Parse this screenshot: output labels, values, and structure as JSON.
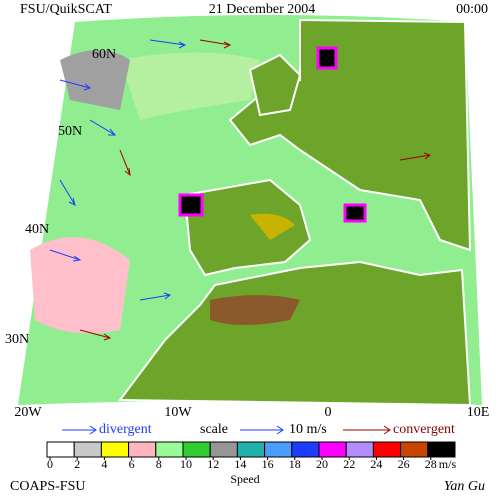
{
  "header": {
    "left": "FSU/QuikSCAT",
    "center": "21 December 2004",
    "right": "00:00"
  },
  "map": {
    "lat_labels": [
      "60N",
      "50N",
      "40N",
      "30N"
    ],
    "lon_labels": [
      "20W",
      "10W",
      "0",
      "10E"
    ]
  },
  "legend": {
    "divergent": "divergent",
    "scale": "scale",
    "scale_value": "10 m/s",
    "convergent": "convergent"
  },
  "colorbar": {
    "colors": [
      "#ffffff",
      "#c8c8c8",
      "#ffff00",
      "#ffb6c1",
      "#98fb98",
      "#32cd32",
      "#969696",
      "#20b2aa",
      "#4a9cff",
      "#1e3cff",
      "#ff00ff",
      "#b48cff",
      "#ff0000",
      "#c84600",
      "#000000"
    ],
    "ticks": [
      0,
      2,
      4,
      6,
      8,
      10,
      12,
      14,
      16,
      18,
      20,
      22,
      24,
      26,
      28
    ],
    "unit": "m/s",
    "label": "Speed"
  },
  "footer": {
    "left": "COAPS-FSU",
    "right": "Yan Gu"
  }
}
